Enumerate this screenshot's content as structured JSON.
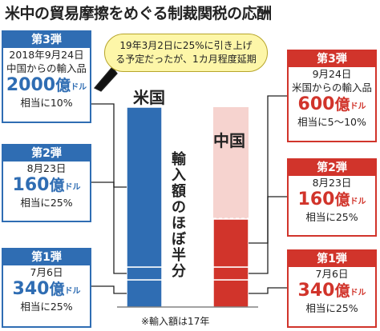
{
  "title": "米中の貿易摩擦をめぐる制裁関税の応酬",
  "callout": {
    "line1": "19年3月2日に25%に引き上げ",
    "line2": "る予定だったが、1カ月程度延期"
  },
  "countries": {
    "us": "米国",
    "china": "中国"
  },
  "vertical_label": "輸入額のほぼ半分",
  "note": "※輸入額は17年",
  "us_rounds": [
    {
      "label": "第3弾",
      "date": "2018年9月24日",
      "subject": "中国からの輸入品",
      "amount": "2000",
      "oku": "億",
      "unit": "ドル",
      "rate": "相当に10%"
    },
    {
      "label": "第2弾",
      "date": "8月23日",
      "amount": "160",
      "oku": "億",
      "unit": "ドル",
      "rate": "相当に25%"
    },
    {
      "label": "第1弾",
      "date": "7月6日",
      "amount": "340",
      "oku": "億",
      "unit": "ドル",
      "rate": "相当に25%"
    }
  ],
  "china_rounds": [
    {
      "label": "第3弾",
      "date": "9月24日",
      "subject": "米国からの輸入品",
      "amount": "600",
      "oku": "億",
      "unit": "ドル",
      "rate": "相当に5～10%"
    },
    {
      "label": "第2弾",
      "date": "8月23日",
      "amount": "160",
      "oku": "億",
      "unit": "ドル",
      "rate": "相当に25%"
    },
    {
      "label": "第1弾",
      "date": "7月6日",
      "amount": "340",
      "oku": "億",
      "unit": "ドル",
      "rate": "相当に25%"
    }
  ],
  "chart_data": {
    "type": "bar",
    "categories": [
      "米国",
      "中国"
    ],
    "unit": "億ドル",
    "series": [
      {
        "name": "第1弾",
        "values": [
          340,
          340
        ]
      },
      {
        "name": "第2弾",
        "values": [
          160,
          160
        ]
      },
      {
        "name": "第3弾",
        "values": [
          2000,
          600
        ]
      }
    ],
    "colors": {
      "us": "#2f6db3",
      "china": "#d1342b",
      "china_remaining": "#f6d3cf"
    },
    "ylabel": "",
    "xlabel": ""
  }
}
